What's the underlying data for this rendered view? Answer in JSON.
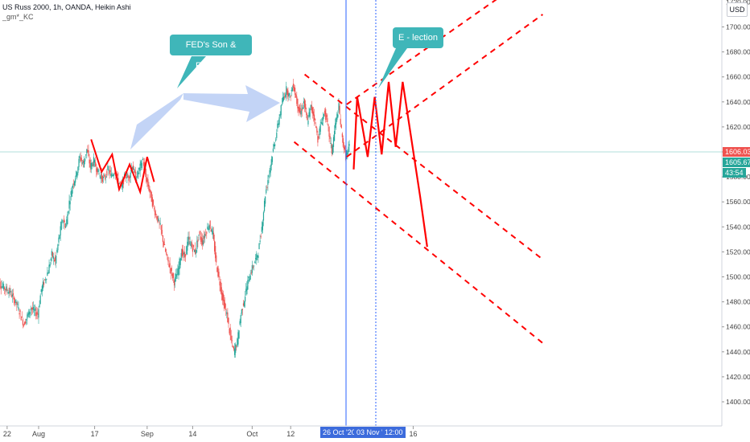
{
  "header": {
    "title": "US Russ 2000, 1h, OANDA, Heikin Ashi",
    "indicator": "_gm*_KC"
  },
  "currency_button": "USD",
  "callouts": {
    "fed": "FED's Son & Father?",
    "election": "E - lection"
  },
  "price_tags": {
    "last": "1606.030",
    "current": "1605.675",
    "countdown": "43:54"
  },
  "date_tags": {
    "d1": "26 Oct '20",
    "d2": "03 Nov '20",
    "d3": "12:00"
  },
  "colors": {
    "bull": "#26a69a",
    "bear": "#ef5350",
    "projection": "#ff0000",
    "callout": "#3fb6b9",
    "vline": "#2962ff",
    "hline": "#b2dfdb",
    "last_tag": "#ef5350",
    "current_tag": "#26a69a"
  },
  "chart_data": {
    "type": "line",
    "title": "US Russ 2000, 1h, OANDA, Heikin Ashi",
    "y_axis": {
      "ticks": [
        "1700.000",
        "1680.000",
        "1660.000",
        "1640.000",
        "1620.000",
        "1600.000",
        "1580.000",
        "1560.000",
        "1540.000",
        "1520.000",
        "1500.000",
        "1480.000",
        "1460.000",
        "1440.000",
        "1420.000",
        "1400.000"
      ],
      "partial_top_tick": "1720.000",
      "range": [
        1392,
        1722
      ]
    },
    "x_axis": {
      "ticks": [
        {
          "label": "22",
          "day": -9
        },
        {
          "label": "Aug",
          "day": 0
        },
        {
          "label": "17",
          "day": 16
        },
        {
          "label": "Sep",
          "day": 31
        },
        {
          "label": "14",
          "day": 44
        },
        {
          "label": "Oct",
          "day": 61
        },
        {
          "label": "12",
          "day": 72
        },
        {
          "label": "16",
          "day": 107
        }
      ]
    },
    "price_series": {
      "name": "US Russ 2000",
      "points": [
        [
          -12,
          1498
        ],
        [
          -10,
          1492
        ],
        [
          -8,
          1488
        ],
        [
          -6,
          1478
        ],
        [
          -4,
          1462
        ],
        [
          -2,
          1475
        ],
        [
          0,
          1470
        ],
        [
          1,
          1490
        ],
        [
          3,
          1505
        ],
        [
          4,
          1518
        ],
        [
          5,
          1512
        ],
        [
          6,
          1530
        ],
        [
          7,
          1546
        ],
        [
          8,
          1540
        ],
        [
          9,
          1560
        ],
        [
          10,
          1574
        ],
        [
          11,
          1582
        ],
        [
          12,
          1596
        ],
        [
          13,
          1590
        ],
        [
          14,
          1602
        ],
        [
          15,
          1588
        ],
        [
          16,
          1593
        ],
        [
          17,
          1585
        ],
        [
          18,
          1580
        ],
        [
          19,
          1578
        ],
        [
          20,
          1586
        ],
        [
          21,
          1581
        ],
        [
          22,
          1585
        ],
        [
          23,
          1576
        ],
        [
          24,
          1572
        ],
        [
          25,
          1582
        ],
        [
          26,
          1579
        ],
        [
          27,
          1590
        ],
        [
          28,
          1578
        ],
        [
          29,
          1586
        ],
        [
          30,
          1594
        ],
        [
          31,
          1578
        ],
        [
          32,
          1568
        ],
        [
          33,
          1556
        ],
        [
          34,
          1548
        ],
        [
          35,
          1540
        ],
        [
          36,
          1526
        ],
        [
          37,
          1514
        ],
        [
          38,
          1505
        ],
        [
          39,
          1496
        ],
        [
          40,
          1504
        ],
        [
          41,
          1520
        ],
        [
          42,
          1516
        ],
        [
          43,
          1530
        ],
        [
          44,
          1524
        ],
        [
          45,
          1520
        ],
        [
          46,
          1534
        ],
        [
          47,
          1528
        ],
        [
          48,
          1536
        ],
        [
          49,
          1542
        ],
        [
          50,
          1534
        ],
        [
          51,
          1510
        ],
        [
          52,
          1495
        ],
        [
          53,
          1480
        ],
        [
          54,
          1470
        ],
        [
          55,
          1452
        ],
        [
          56,
          1440
        ],
        [
          57,
          1448
        ],
        [
          58,
          1470
        ],
        [
          59,
          1482
        ],
        [
          60,
          1496
        ],
        [
          61,
          1505
        ],
        [
          62,
          1512
        ],
        [
          63,
          1520
        ],
        [
          64,
          1540
        ],
        [
          65,
          1566
        ],
        [
          66,
          1582
        ],
        [
          67,
          1598
        ],
        [
          68,
          1612
        ],
        [
          69,
          1628
        ],
        [
          70,
          1642
        ],
        [
          71,
          1650
        ],
        [
          72,
          1644
        ],
        [
          73,
          1654
        ],
        [
          74,
          1640
        ],
        [
          75,
          1630
        ],
        [
          76,
          1640
        ],
        [
          77,
          1624
        ],
        [
          78,
          1636
        ],
        [
          79,
          1628
        ],
        [
          80,
          1610
        ],
        [
          81,
          1624
        ],
        [
          82,
          1632
        ],
        [
          83,
          1618
        ],
        [
          84,
          1600
        ],
        [
          85,
          1622
        ],
        [
          86,
          1636
        ],
        [
          87,
          1610
        ],
        [
          88,
          1596
        ],
        [
          89,
          1604
        ]
      ]
    },
    "drawings": {
      "zigzag_aug": [
        [
          15,
          1610
        ],
        [
          18,
          1584
        ],
        [
          21,
          1598
        ],
        [
          23,
          1570
        ],
        [
          26,
          1590
        ],
        [
          29,
          1568
        ],
        [
          31,
          1596
        ],
        [
          33,
          1576
        ]
      ],
      "projection_zigzag": [
        [
          90,
          1586
        ],
        [
          91,
          1644
        ],
        [
          94,
          1596
        ],
        [
          96,
          1644
        ],
        [
          98,
          1598
        ],
        [
          100,
          1656
        ],
        [
          102,
          1604
        ],
        [
          104,
          1656
        ],
        [
          109,
          1564
        ],
        [
          111,
          1524
        ]
      ],
      "channel_lines": [
        [
          [
            76,
            1662
          ],
          [
            144,
            1514
          ]
        ],
        [
          [
            73,
            1608
          ],
          [
            144,
            1447
          ]
        ],
        [
          [
            88,
            1638
          ],
          [
            144,
            1748
          ]
        ],
        [
          [
            88,
            1596
          ],
          [
            144,
            1710
          ]
        ]
      ]
    }
  }
}
